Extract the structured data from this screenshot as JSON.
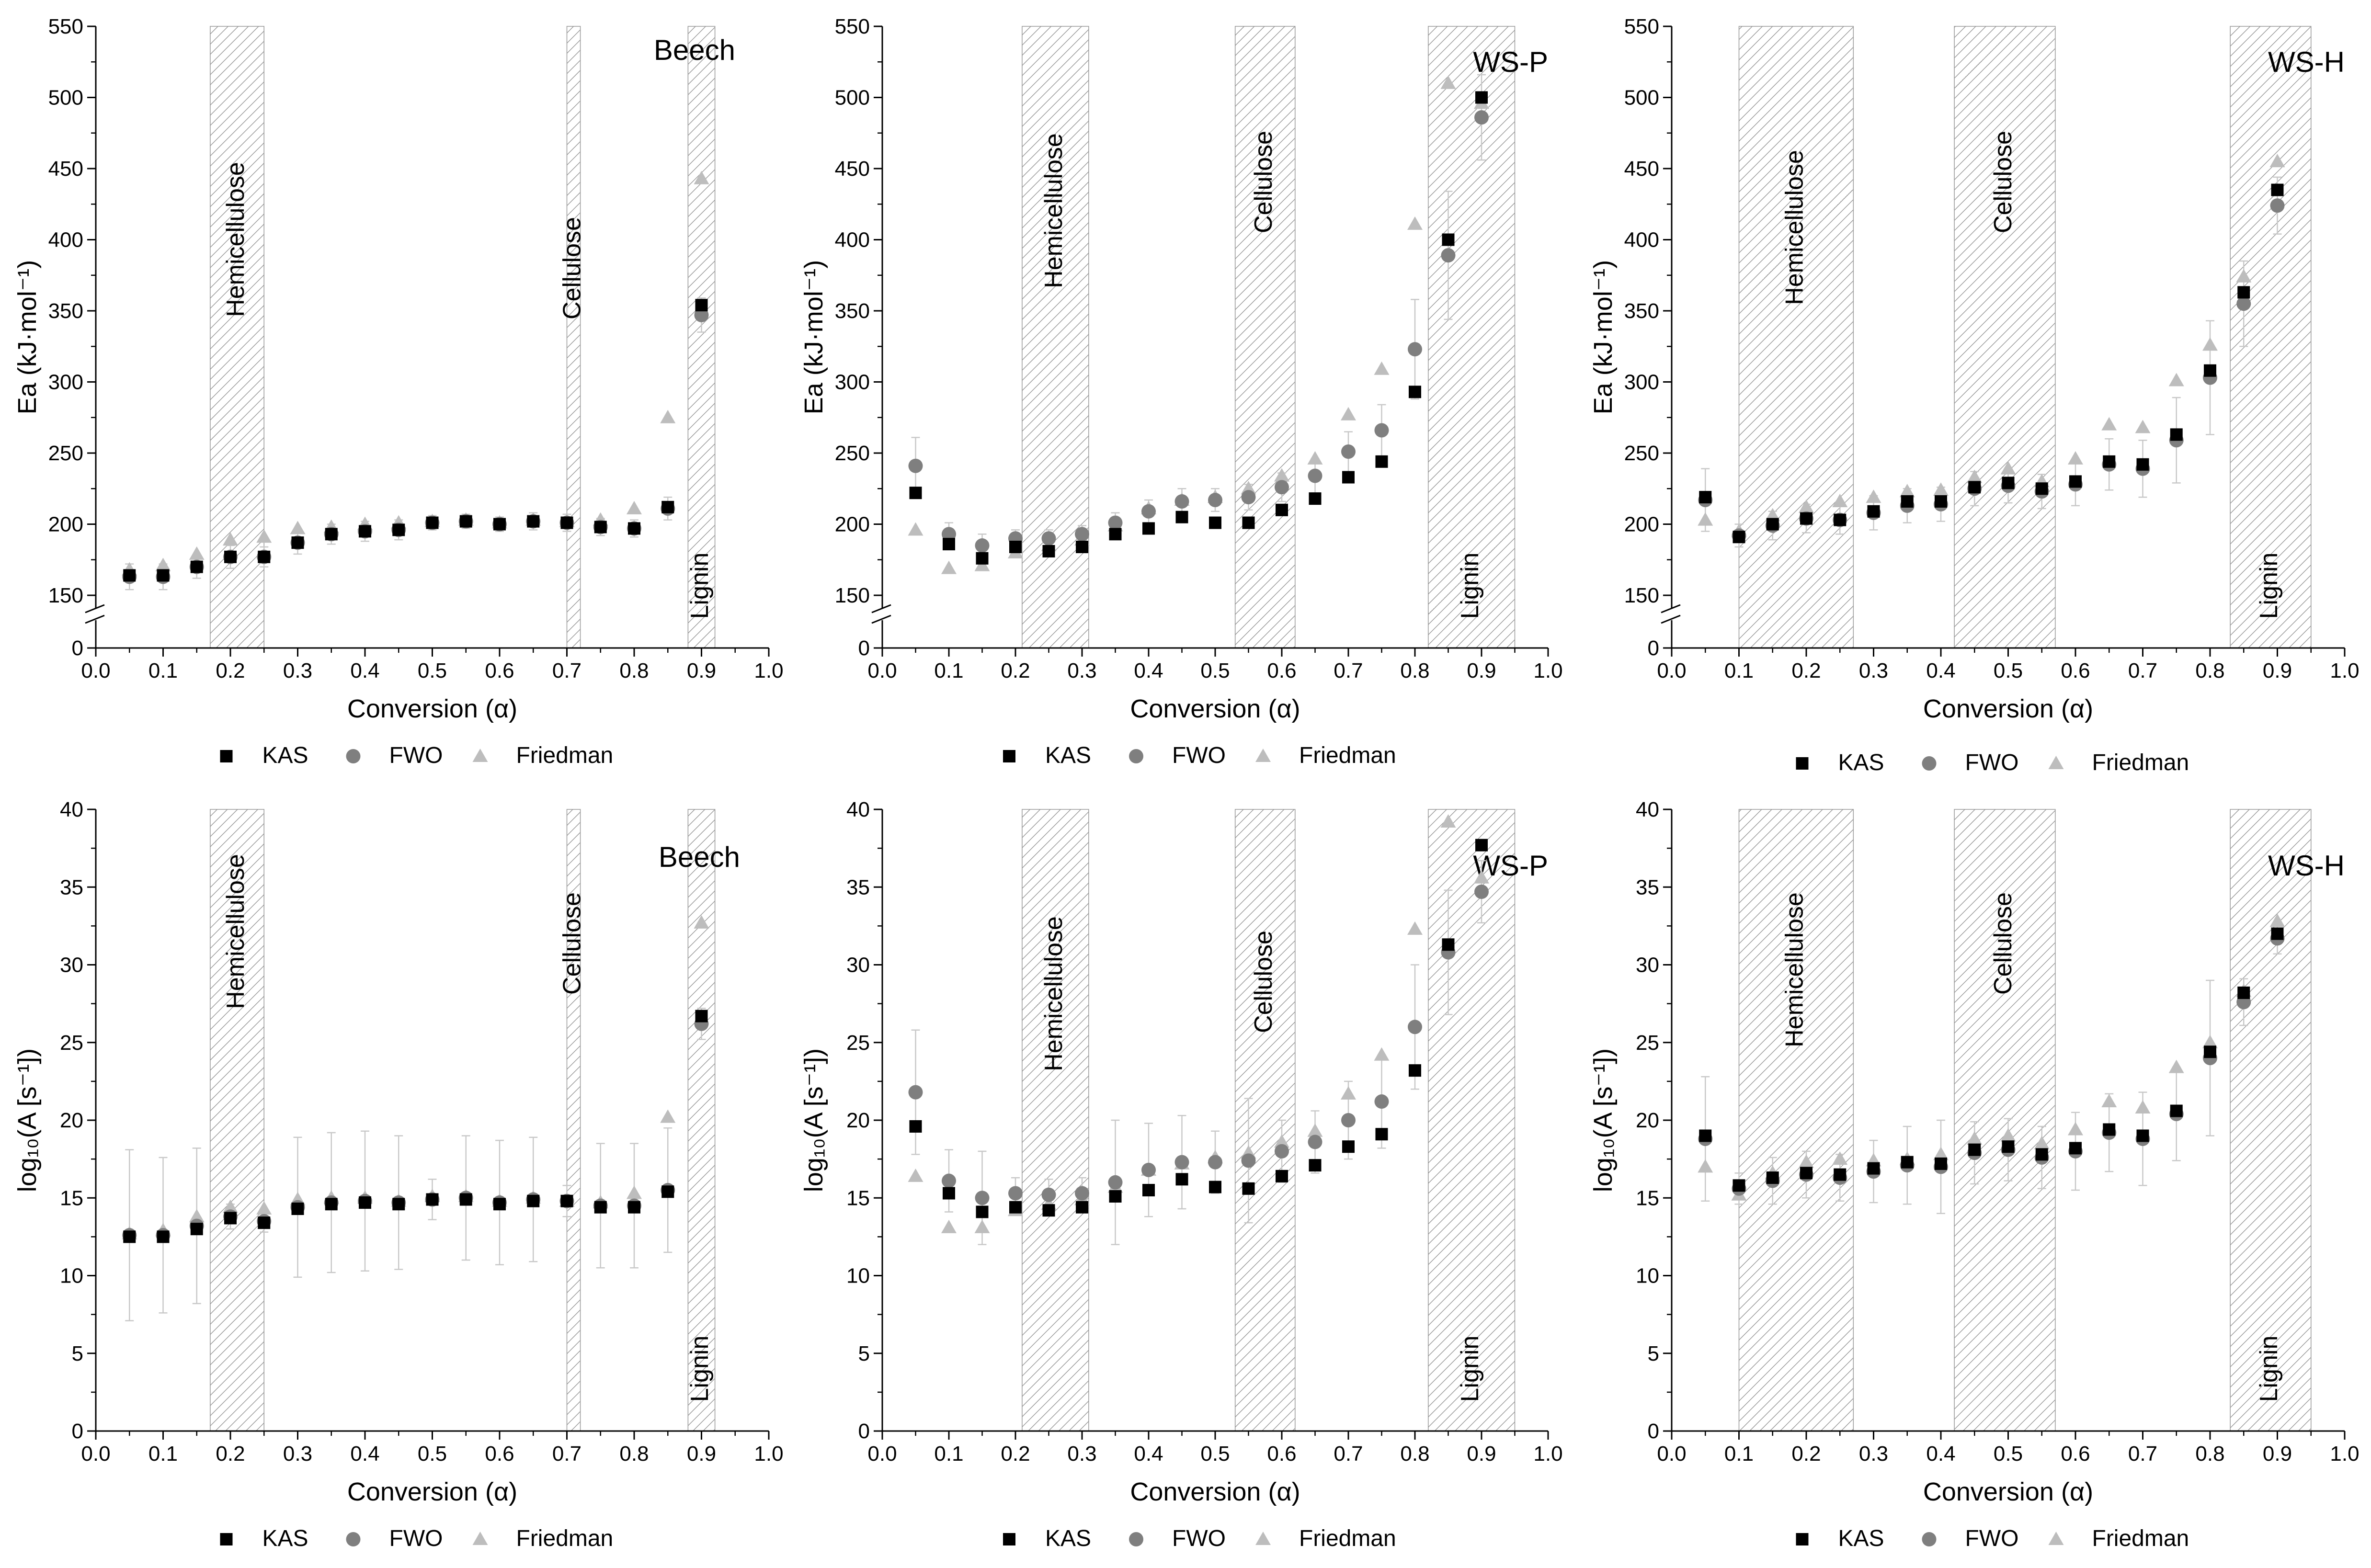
{
  "figure": {
    "panel_count": 6
  },
  "colors": {
    "KAS": "#000000",
    "FWO": "#7f7f7f",
    "Friedman": "#bdbdbd",
    "band": "#8a8a8a",
    "axis": "#000000"
  },
  "chart_data": [
    {
      "type": "scatter",
      "title": "Beech",
      "xlabel": "Conversion (α)",
      "ylabel": "Ea (kJ·mol⁻¹)",
      "xlim": [
        0,
        1
      ],
      "ylim": [
        150,
        550
      ],
      "axis_break": true,
      "xticks": [
        "0.0",
        "0.1",
        "0.2",
        "0.3",
        "0.4",
        "0.5",
        "0.6",
        "0.7",
        "0.8",
        "0.9",
        "1.0"
      ],
      "yticks": [
        "0",
        "150",
        "200",
        "250",
        "300",
        "350",
        "400",
        "450",
        "500",
        "550"
      ],
      "bands": [
        {
          "name": "Hemicellulose",
          "from": 0.17,
          "to": 0.25
        },
        {
          "name": "Cellulose",
          "from": 0.7,
          "to": 0.72
        },
        {
          "name": "Lignin",
          "from": 0.88,
          "to": 0.92
        }
      ],
      "x": [
        0.05,
        0.1,
        0.15,
        0.2,
        0.25,
        0.3,
        0.35,
        0.4,
        0.45,
        0.5,
        0.55,
        0.6,
        0.65,
        0.7,
        0.75,
        0.8,
        0.85,
        0.9
      ],
      "series": [
        {
          "name": "KAS",
          "values": [
            164,
            164,
            170,
            177,
            177,
            187,
            193,
            195,
            196,
            201,
            202,
            200,
            202,
            201,
            198,
            197,
            212,
            354
          ]
        },
        {
          "name": "FWO",
          "values": [
            163,
            163,
            170,
            177,
            177,
            187,
            193,
            195,
            196,
            201,
            202,
            200,
            202,
            201,
            198,
            197,
            211,
            347
          ]
        },
        {
          "name": "Friedman",
          "values": [
            168,
            171,
            179,
            189,
            191,
            197,
            198,
            200,
            201,
            202,
            203,
            201,
            203,
            202,
            203,
            211,
            275,
            443
          ]
        }
      ],
      "errors": [
        9,
        9,
        8,
        8,
        7,
        8,
        7,
        7,
        7,
        5,
        5,
        5,
        6,
        6,
        6,
        6,
        8,
        12
      ],
      "legend": [
        "KAS",
        "FWO",
        "Friedman"
      ]
    },
    {
      "type": "scatter",
      "title": "WS-P",
      "xlabel": "Conversion (α)",
      "ylabel": "Ea (kJ·mol⁻¹)",
      "xlim": [
        0,
        1
      ],
      "ylim": [
        150,
        550
      ],
      "axis_break": true,
      "xticks": [
        "0.0",
        "0.1",
        "0.2",
        "0.3",
        "0.4",
        "0.5",
        "0.6",
        "0.7",
        "0.8",
        "0.9",
        "1.0"
      ],
      "yticks": [
        "0",
        "150",
        "200",
        "250",
        "300",
        "350",
        "400",
        "450",
        "500",
        "550"
      ],
      "bands": [
        {
          "name": "Hemicellulose",
          "from": 0.21,
          "to": 0.31
        },
        {
          "name": "Cellulose",
          "from": 0.53,
          "to": 0.62
        },
        {
          "name": "Lignin",
          "from": 0.82,
          "to": 0.95
        }
      ],
      "x": [
        0.05,
        0.1,
        0.15,
        0.2,
        0.25,
        0.3,
        0.35,
        0.4,
        0.45,
        0.5,
        0.55,
        0.6,
        0.65,
        0.7,
        0.75,
        0.8,
        0.85,
        0.9
      ],
      "series": [
        {
          "name": "KAS",
          "values": [
            222,
            186,
            176,
            184,
            181,
            184,
            193,
            197,
            205,
            201,
            201,
            210,
            218,
            233,
            244,
            293,
            400,
            500
          ]
        },
        {
          "name": "FWO",
          "values": [
            241,
            193,
            185,
            190,
            190,
            193,
            201,
            209,
            216,
            217,
            219,
            226,
            234,
            251,
            266,
            323,
            389,
            486
          ]
        },
        {
          "name": "Friedman",
          "values": [
            196,
            169,
            171,
            180,
            185,
            189,
            199,
            211,
            217,
            219,
            225,
            234,
            246,
            277,
            309,
            411,
            510,
            496
          ]
        }
      ],
      "errors": [
        20,
        8,
        8,
        6,
        6,
        6,
        7,
        8,
        9,
        8,
        9,
        10,
        12,
        14,
        18,
        35,
        45,
        30
      ],
      "legend": [
        "KAS",
        "FWO",
        "Friedman"
      ]
    },
    {
      "type": "scatter",
      "title": "WS-H",
      "xlabel": "Conversion (α)",
      "ylabel": "Ea (kJ·mol⁻¹)",
      "xlim": [
        0,
        1
      ],
      "ylim": [
        150,
        550
      ],
      "axis_break": true,
      "xticks": [
        "0.0",
        "0.1",
        "0.2",
        "0.3",
        "0.4",
        "0.5",
        "0.6",
        "0.7",
        "0.8",
        "0.9",
        "1.0"
      ],
      "yticks": [
        "0",
        "150",
        "200",
        "250",
        "300",
        "350",
        "400",
        "450",
        "500",
        "550"
      ],
      "bands": [
        {
          "name": "Hemicellulose",
          "from": 0.1,
          "to": 0.27
        },
        {
          "name": "Cellulose",
          "from": 0.42,
          "to": 0.57
        },
        {
          "name": "Lignin",
          "from": 0.83,
          "to": 0.95
        }
      ],
      "x": [
        0.05,
        0.1,
        0.15,
        0.2,
        0.25,
        0.3,
        0.35,
        0.4,
        0.45,
        0.5,
        0.55,
        0.6,
        0.65,
        0.7,
        0.75,
        0.8,
        0.85,
        0.9
      ],
      "series": [
        {
          "name": "KAS",
          "values": [
            219,
            191,
            200,
            204,
            203,
            209,
            216,
            216,
            226,
            229,
            225,
            230,
            244,
            242,
            263,
            308,
            363,
            435
          ]
        },
        {
          "name": "FWO",
          "values": [
            217,
            192,
            199,
            204,
            203,
            208,
            213,
            214,
            225,
            227,
            223,
            228,
            242,
            239,
            259,
            303,
            355,
            424
          ]
        },
        {
          "name": "Friedman",
          "values": [
            203,
            195,
            206,
            212,
            216,
            219,
            223,
            224,
            233,
            239,
            230,
            246,
            270,
            268,
            301,
            326,
            374,
            455
          ]
        }
      ],
      "errors": [
        22,
        8,
        10,
        10,
        10,
        12,
        12,
        12,
        12,
        12,
        12,
        15,
        18,
        20,
        30,
        40,
        30,
        20
      ],
      "legend": [
        "KAS",
        "FWO",
        "Friedman"
      ]
    },
    {
      "type": "scatter",
      "title": "Beech",
      "xlabel": "Conversion (α)",
      "ylabel": "log₁₀(A [s⁻¹])",
      "xlim": [
        0,
        1
      ],
      "ylim": [
        0,
        40
      ],
      "axis_break": false,
      "xticks": [
        "0.0",
        "0.1",
        "0.2",
        "0.3",
        "0.4",
        "0.5",
        "0.6",
        "0.7",
        "0.8",
        "0.9",
        "1.0"
      ],
      "yticks": [
        "0",
        "5",
        "10",
        "15",
        "20",
        "25",
        "30",
        "35",
        "40"
      ],
      "bands": [
        {
          "name": "Hemicellulose",
          "from": 0.17,
          "to": 0.25
        },
        {
          "name": "Cellulose",
          "from": 0.7,
          "to": 0.72
        },
        {
          "name": "Lignin",
          "from": 0.88,
          "to": 0.92
        }
      ],
      "x": [
        0.05,
        0.1,
        0.15,
        0.2,
        0.25,
        0.3,
        0.35,
        0.4,
        0.45,
        0.5,
        0.55,
        0.6,
        0.65,
        0.7,
        0.75,
        0.8,
        0.85,
        0.9
      ],
      "series": [
        {
          "name": "KAS",
          "values": [
            12.5,
            12.5,
            13.0,
            13.7,
            13.4,
            14.3,
            14.6,
            14.7,
            14.6,
            14.9,
            14.9,
            14.6,
            14.8,
            14.8,
            14.4,
            14.4,
            15.4,
            26.7
          ]
        },
        {
          "name": "FWO",
          "values": [
            12.6,
            12.6,
            13.2,
            13.8,
            13.5,
            14.4,
            14.7,
            14.8,
            14.7,
            14.9,
            15.0,
            14.7,
            14.9,
            14.8,
            14.5,
            14.5,
            15.5,
            26.2
          ]
        },
        {
          "name": "Friedman",
          "values": [
            12.7,
            12.9,
            13.8,
            14.4,
            14.3,
            14.9,
            15.0,
            15.0,
            14.8,
            15.1,
            15.1,
            14.8,
            15.0,
            14.8,
            14.7,
            15.3,
            20.2,
            32.7
          ]
        }
      ],
      "errors": [
        5.5,
        5.0,
        5.0,
        0.8,
        0.7,
        4.5,
        4.5,
        4.5,
        4.3,
        1.3,
        4.0,
        4.0,
        4.0,
        1.0,
        4.0,
        4.0,
        4.0,
        1.0
      ],
      "legend": [
        "KAS",
        "FWO",
        "Friedman"
      ]
    },
    {
      "type": "scatter",
      "title": "WS-P",
      "xlabel": "Conversion (α)",
      "ylabel": "log₁₀(A [s⁻¹])",
      "xlim": [
        0,
        1
      ],
      "ylim": [
        0,
        40
      ],
      "axis_break": false,
      "xticks": [
        "0.0",
        "0.1",
        "0.2",
        "0.3",
        "0.4",
        "0.5",
        "0.6",
        "0.7",
        "0.8",
        "0.9",
        "1.0"
      ],
      "yticks": [
        "0",
        "5",
        "10",
        "15",
        "20",
        "25",
        "30",
        "35",
        "40"
      ],
      "bands": [
        {
          "name": "Hemicellulose",
          "from": 0.21,
          "to": 0.31
        },
        {
          "name": "Cellulose",
          "from": 0.53,
          "to": 0.62
        },
        {
          "name": "Lignin",
          "from": 0.82,
          "to": 0.95
        }
      ],
      "x": [
        0.05,
        0.1,
        0.15,
        0.2,
        0.25,
        0.3,
        0.35,
        0.4,
        0.45,
        0.5,
        0.55,
        0.6,
        0.65,
        0.7,
        0.75,
        0.8,
        0.85,
        0.9
      ],
      "series": [
        {
          "name": "KAS",
          "values": [
            19.6,
            15.3,
            14.1,
            14.4,
            14.2,
            14.4,
            15.1,
            15.5,
            16.2,
            15.7,
            15.6,
            16.4,
            17.1,
            18.3,
            19.1,
            23.2,
            31.3,
            37.7
          ]
        },
        {
          "name": "FWO",
          "values": [
            21.8,
            16.1,
            15.0,
            15.3,
            15.2,
            15.3,
            16.0,
            16.8,
            17.3,
            17.3,
            17.4,
            18.0,
            18.6,
            20.0,
            21.2,
            26.0,
            30.8,
            34.7
          ]
        },
        {
          "name": "Friedman",
          "values": [
            16.4,
            13.1,
            13.1,
            14.2,
            14.6,
            14.9,
            15.7,
            16.8,
            17.2,
            17.6,
            17.9,
            18.6,
            19.3,
            21.7,
            24.2,
            32.3,
            39.2,
            35.6
          ]
        }
      ],
      "errors": [
        4.0,
        2.0,
        3.0,
        1.0,
        1.0,
        1.0,
        4.0,
        3.0,
        3.0,
        2.0,
        4.0,
        2.0,
        2.0,
        2.5,
        3.0,
        4.0,
        4.0,
        2.0
      ],
      "legend": [
        "KAS",
        "FWO",
        "Friedman"
      ]
    },
    {
      "type": "scatter",
      "title": "WS-H",
      "xlabel": "Conversion (α)",
      "ylabel": "log₁₀(A [s⁻¹])",
      "xlim": [
        0,
        1
      ],
      "ylim": [
        0,
        40
      ],
      "axis_break": false,
      "xticks": [
        "0.0",
        "0.1",
        "0.2",
        "0.3",
        "0.4",
        "0.5",
        "0.6",
        "0.7",
        "0.8",
        "0.9",
        "1.0"
      ],
      "yticks": [
        "0",
        "5",
        "10",
        "15",
        "20",
        "25",
        "30",
        "35",
        "40"
      ],
      "bands": [
        {
          "name": "Hemicellulose",
          "from": 0.1,
          "to": 0.27
        },
        {
          "name": "Cellulose",
          "from": 0.42,
          "to": 0.57
        },
        {
          "name": "Lignin",
          "from": 0.83,
          "to": 0.95
        }
      ],
      "x": [
        0.05,
        0.1,
        0.15,
        0.2,
        0.25,
        0.3,
        0.35,
        0.4,
        0.45,
        0.5,
        0.55,
        0.6,
        0.65,
        0.7,
        0.75,
        0.8,
        0.85,
        0.9
      ],
      "series": [
        {
          "name": "KAS",
          "values": [
            19.0,
            15.8,
            16.3,
            16.6,
            16.5,
            16.9,
            17.3,
            17.2,
            18.1,
            18.3,
            17.8,
            18.2,
            19.4,
            19.0,
            20.6,
            24.4,
            28.2,
            32.0
          ]
        },
        {
          "name": "FWO",
          "values": [
            18.8,
            15.6,
            16.1,
            16.5,
            16.3,
            16.7,
            17.1,
            17.0,
            17.9,
            18.1,
            17.6,
            18.0,
            19.2,
            18.8,
            20.4,
            24.0,
            27.6,
            31.7
          ]
        },
        {
          "name": "Friedman",
          "values": [
            17.0,
            15.2,
            16.6,
            17.3,
            17.5,
            17.4,
            17.5,
            17.8,
            18.8,
            19.0,
            18.5,
            19.4,
            21.2,
            20.8,
            23.4,
            25.0,
            28.3,
            32.8
          ]
        }
      ],
      "errors": [
        4.0,
        1.0,
        1.5,
        1.5,
        1.5,
        2.0,
        2.5,
        3.0,
        2.0,
        2.0,
        2.0,
        2.5,
        2.5,
        3.0,
        3.0,
        5.0,
        1.5,
        1.0
      ],
      "legend": [
        "KAS",
        "FWO",
        "Friedman"
      ]
    }
  ]
}
